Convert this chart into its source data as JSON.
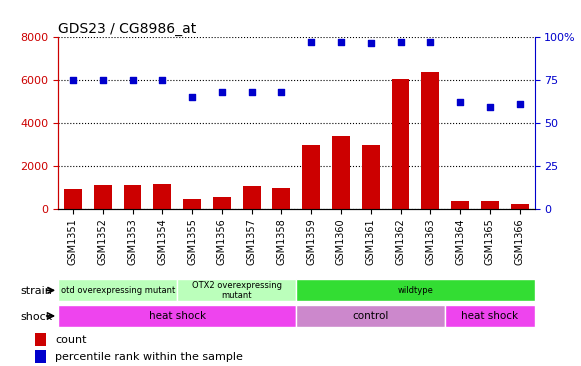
{
  "title": "GDS23 / CG8986_at",
  "samples": [
    "GSM1351",
    "GSM1352",
    "GSM1353",
    "GSM1354",
    "GSM1355",
    "GSM1356",
    "GSM1357",
    "GSM1358",
    "GSM1359",
    "GSM1360",
    "GSM1361",
    "GSM1362",
    "GSM1363",
    "GSM1364",
    "GSM1365",
    "GSM1366"
  ],
  "counts": [
    900,
    1100,
    1100,
    1150,
    450,
    550,
    1050,
    950,
    2950,
    3400,
    2950,
    6050,
    6350,
    350,
    350,
    200
  ],
  "percentiles": [
    75,
    75,
    75,
    75,
    65,
    68,
    68,
    68,
    97,
    97,
    96,
    97,
    97,
    62,
    59,
    61
  ],
  "strain_groups": [
    {
      "label": "otd overexpressing mutant",
      "start": 0,
      "end": 4,
      "color": "#BBFFBB"
    },
    {
      "label": "OTX2 overexpressing\nmutant",
      "start": 4,
      "end": 8,
      "color": "#BBFFBB"
    },
    {
      "label": "wildtype",
      "start": 8,
      "end": 16,
      "color": "#33DD33"
    }
  ],
  "shock_groups": [
    {
      "label": "heat shock",
      "start": 0,
      "end": 8,
      "color": "#EE44EE"
    },
    {
      "label": "control",
      "start": 8,
      "end": 13,
      "color": "#CC88CC"
    },
    {
      "label": "heat shock",
      "start": 13,
      "end": 16,
      "color": "#EE44EE"
    }
  ],
  "ylim_left": [
    0,
    8000
  ],
  "ylim_right": [
    0,
    100
  ],
  "yticks_left": [
    0,
    2000,
    4000,
    6000,
    8000
  ],
  "yticks_right": [
    0,
    25,
    50,
    75,
    100
  ],
  "bar_color": "#CC0000",
  "dot_color": "#0000CC",
  "title_fontsize": 10,
  "tick_label_fontsize": 7,
  "axis_color_left": "#CC0000",
  "axis_color_right": "#0000CC",
  "bg_color": "#FFFFFF"
}
